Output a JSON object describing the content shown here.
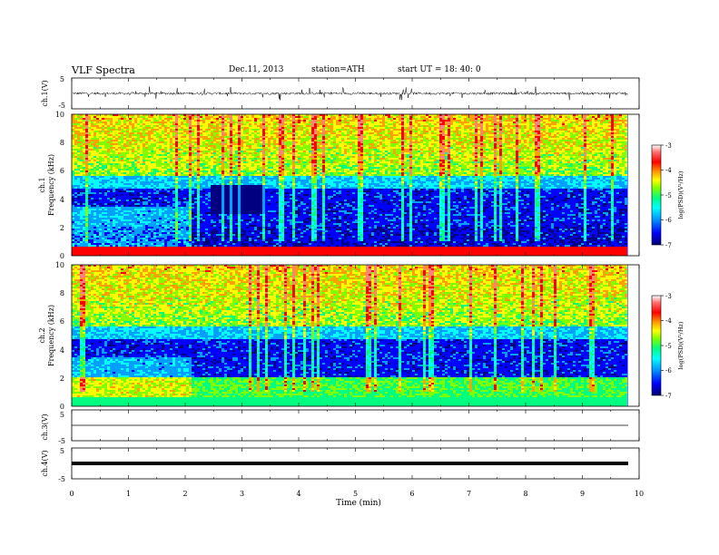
{
  "header": {
    "title": "VLF  Spectra",
    "date": "Dec.11, 2013",
    "station": "station=ATH",
    "start": "start  UT  =    18: 40: 0"
  },
  "chart_data": [
    {
      "type": "line",
      "ylabel": "ch.1(V)",
      "ylim": [
        -5,
        5
      ],
      "yticks": [
        "5",
        "-5"
      ],
      "xlim": [
        0,
        10
      ],
      "note": "noisy waveform around 0 V with spikes"
    },
    {
      "type": "heatmap",
      "ylabel_top": "ch.1",
      "ylabel": "Frequency  (kHz)",
      "ylim": [
        0,
        10
      ],
      "yticks": [
        "0",
        "2",
        "4",
        "6",
        "8",
        "10"
      ],
      "xlim": [
        0,
        10
      ],
      "data_extent_min": 9.8,
      "colorbar": {
        "label": "log(PSD)(V²/Hz)",
        "range": [
          -7,
          -3
        ],
        "ticks": [
          "-3",
          "-4",
          "-5",
          "-6",
          "-7"
        ]
      }
    },
    {
      "type": "heatmap",
      "ylabel_top": "ch.2",
      "ylabel": "Frequency  (kHz)",
      "ylim": [
        0,
        10
      ],
      "yticks": [
        "0",
        "2",
        "4",
        "6",
        "8",
        "10"
      ],
      "xlim": [
        0,
        10
      ],
      "data_extent_min": 9.8,
      "colorbar": {
        "label": "log(PSD)(V²/Hz)",
        "range": [
          -7,
          -3
        ],
        "ticks": [
          "-3",
          "-4",
          "-5",
          "-6",
          "-7"
        ]
      }
    },
    {
      "type": "line",
      "ylabel": "ch.3(V)",
      "ylim": [
        -5,
        5
      ],
      "yticks": [
        "5",
        "-5"
      ],
      "xlim": [
        0,
        10
      ],
      "note": "flat trace near 0 V"
    },
    {
      "type": "line",
      "ylabel": "ch.4(V)",
      "ylim": [
        -5,
        5
      ],
      "yticks": [
        "5",
        "-5"
      ],
      "xlim": [
        0,
        10
      ],
      "note": "thick flat band near 0 V"
    }
  ],
  "xaxis": {
    "label": "Time  (min)",
    "ticks": [
      "0",
      "1",
      "2",
      "3",
      "4",
      "5",
      "6",
      "7",
      "8",
      "9",
      "10"
    ]
  },
  "colors": {
    "colormap": [
      "#000080",
      "#0000ff",
      "#00a0ff",
      "#00ffff",
      "#00ff80",
      "#80ff00",
      "#ffff00",
      "#ffa000",
      "#ff0000",
      "#ff8080",
      "#ffffff"
    ]
  }
}
